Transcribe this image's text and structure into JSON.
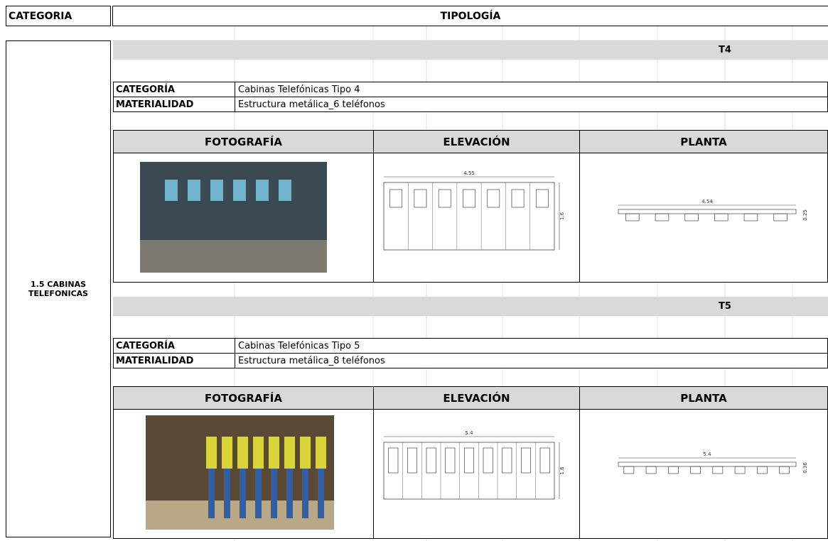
{
  "header": {
    "category": "CATEGORIA",
    "typology": "TIPOLOGÍA"
  },
  "group": "1.5 CABINAS TELEFONICAS",
  "typologies": [
    {
      "code": "T4",
      "category_label": "CATEGORÍA",
      "category": "Cabinas Telefónicas Tipo 4",
      "material_label": "MATERIALIDAD",
      "material": "Estructura metálica_6 teléfonos",
      "columns": [
        "FOTOGRAFÍA",
        "ELEVACIÓN",
        "PLANTA"
      ],
      "elevation": {
        "width": 4.55,
        "height": 1.6
      },
      "plan": {
        "width": 4.54,
        "depth": 0.25
      }
    },
    {
      "code": "T5",
      "category_label": "CATEGORÍA",
      "category": "Cabinas Telefónicas Tipo 5",
      "material_label": "MATERIALIDAD",
      "material": "Estructura metálica_8 teléfonos",
      "columns": [
        "FOTOGRAFÍA",
        "ELEVACIÓN",
        "PLANTA"
      ],
      "elevation": {
        "width": 5.4,
        "height": 1.6
      },
      "plan": {
        "width": 5.4,
        "depth": 0.36
      }
    }
  ]
}
